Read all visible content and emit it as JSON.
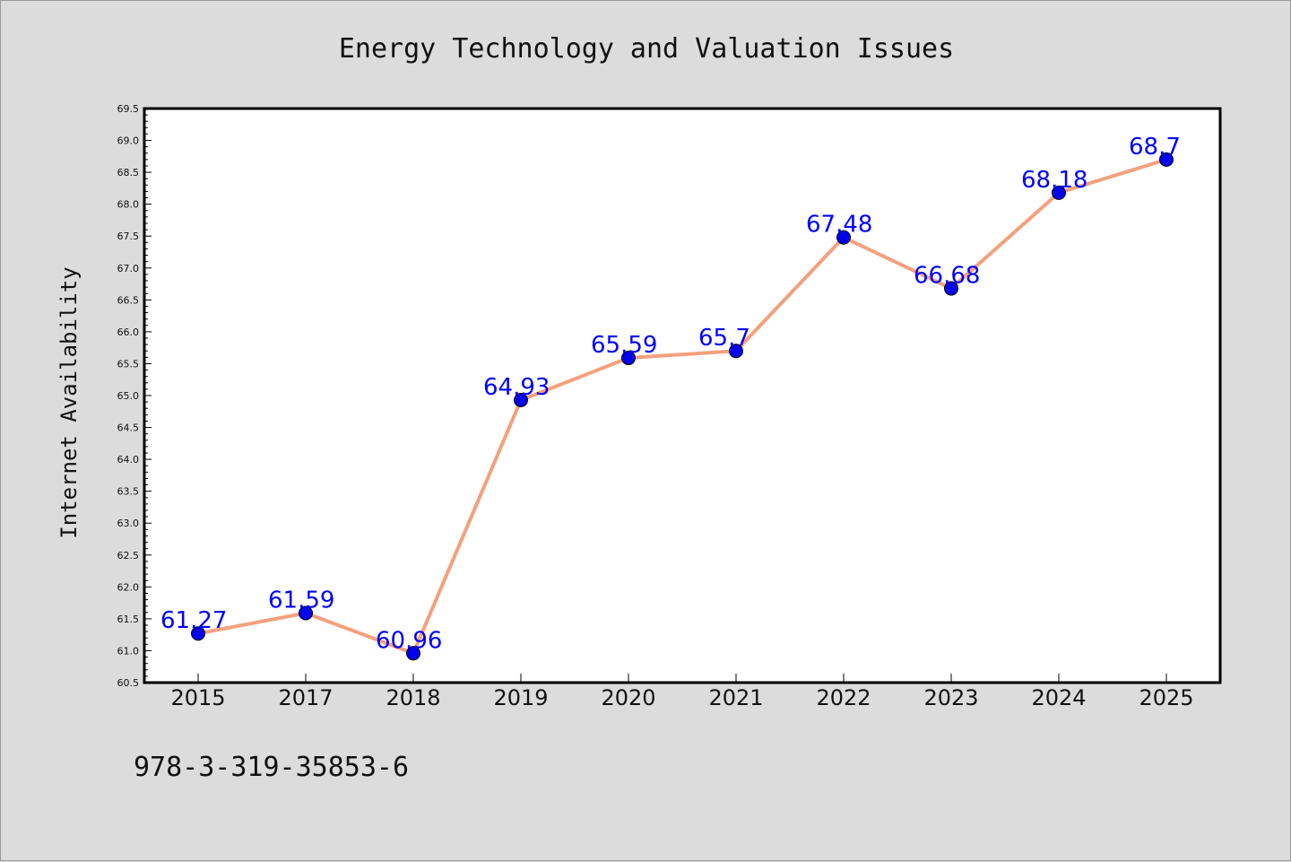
{
  "chart_data": {
    "type": "line",
    "title": "Energy Technology and Valuation Issues",
    "xlabel": "",
    "ylabel": "Internet Availability",
    "categories": [
      "2015",
      "2017",
      "2018",
      "2019",
      "2020",
      "2021",
      "2022",
      "2023",
      "2024",
      "2025"
    ],
    "series": [
      {
        "values": [
          61.27,
          61.59,
          60.96,
          64.93,
          65.59,
          65.7,
          67.48,
          66.68,
          68.18,
          68.7
        ],
        "data_labels": [
          "61.27",
          "61.59",
          "60.96",
          "64.93",
          "65.59",
          "65.7",
          "67.48",
          "66.68",
          "68.18",
          "68.7"
        ],
        "line_color": "#f4a07e",
        "marker_color": "#0000ee"
      }
    ],
    "ylim": [
      60.5,
      69.5
    ],
    "yticks": [
      "60.5",
      "61.0",
      "61.5",
      "62.0",
      "62.5",
      "63.0",
      "63.5",
      "64.0",
      "64.5",
      "65.0",
      "65.5",
      "66.0",
      "66.5",
      "67.0",
      "67.5",
      "68.0",
      "68.5",
      "69.0",
      "69.5"
    ],
    "grid": false,
    "label_color": "#0000ff",
    "background_color": "#dcdcdc",
    "plot_background_color": "#ffffff"
  },
  "footer": {
    "isbn": "978-3-319-35853-6"
  }
}
